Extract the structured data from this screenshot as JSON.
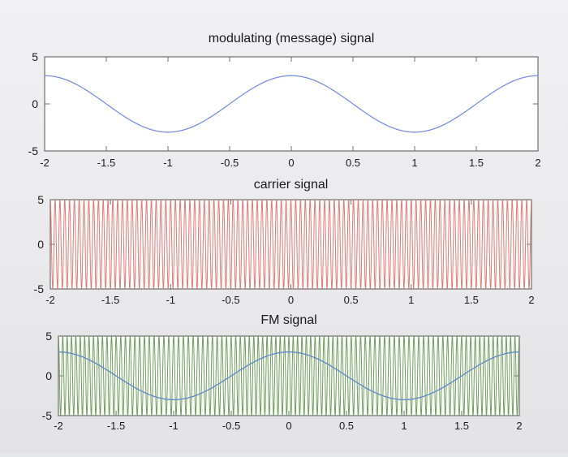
{
  "chart_data": [
    {
      "type": "line",
      "title": "modulating (message) signal",
      "xlabel": "",
      "ylabel": "",
      "xlim": [
        -2,
        2
      ],
      "ylim": [
        -5,
        5
      ],
      "xticks": [
        "-2",
        "-1.5",
        "-1",
        "-0.5",
        "0",
        "0.5",
        "1",
        "1.5",
        "2"
      ],
      "yticks": [
        "5",
        "0",
        "-5"
      ],
      "grid": false,
      "series": [
        {
          "color": "#7b8fe3",
          "function": "3*cos(pi*x)",
          "x": [
            -2,
            -1.5,
            -1,
            -0.5,
            0,
            0.5,
            1,
            1.5,
            2
          ],
          "y": [
            3,
            0,
            -3,
            0,
            3,
            0,
            -3,
            0,
            3
          ]
        }
      ]
    },
    {
      "type": "line",
      "title": "carrier signal",
      "xlabel": "",
      "ylabel": "",
      "xlim": [
        -2,
        2
      ],
      "ylim": [
        -5,
        5
      ],
      "xticks": [
        "-2",
        "-1.5",
        "-1",
        "-0.5",
        "0",
        "0.5",
        "1",
        "1.5",
        "2"
      ],
      "yticks": [
        "5",
        "0",
        "-5"
      ],
      "grid": false,
      "series": [
        {
          "color": "#e07a78",
          "function": "5*cos(2*pi*25*x)",
          "amplitude": 5,
          "cycles_per_unit": 25
        }
      ]
    },
    {
      "type": "line",
      "title": "FM signal",
      "xlabel": "",
      "ylabel": "",
      "xlim": [
        -2,
        2
      ],
      "ylim": [
        -5,
        5
      ],
      "xticks": [
        "-2",
        "-1.5",
        "-1",
        "-0.5",
        "0",
        "0.5",
        "1",
        "1.5",
        "2"
      ],
      "yticks": [
        "5",
        "0",
        "-5"
      ],
      "grid": false,
      "series": [
        {
          "color": "#6f9e5a",
          "function": "5*cos(2*pi*25*x + 3*sin(pi*x))",
          "amplitude": 5,
          "cycles_per_unit": 25,
          "modulation_index": 3
        },
        {
          "color": "#5b87c9",
          "function": "3*cos(pi*x)",
          "x": [
            -2,
            -1.5,
            -1,
            -0.5,
            0,
            0.5,
            1,
            1.5,
            2
          ],
          "y": [
            3,
            0,
            -3,
            0,
            3,
            0,
            -3,
            0,
            3
          ]
        }
      ]
    }
  ]
}
